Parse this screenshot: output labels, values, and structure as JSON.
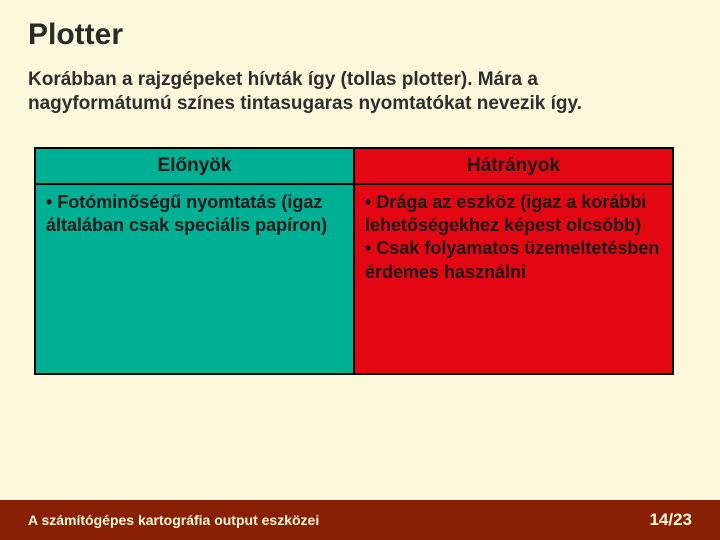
{
  "slide": {
    "title": "Plotter",
    "description": "Korábban a rajzgépeket hívták így (tollas plotter). Mára a nagyformátumú színes tintasugaras nyomtatókat nevezik így.",
    "table": {
      "headers": {
        "pros": "Előnyök",
        "cons": "Hátrányok"
      },
      "pros_items": [
        "Fotóminőségű nyomtatás (igaz általában csak speciális papíron)"
      ],
      "cons_items": [
        "Drága az eszköz (igaz a korábbi lehetőségekhez képest olcsóbb)",
        "Csak folyamatos üzemeltetésben érdemes használni"
      ],
      "colors": {
        "pros_bg": "#00b095",
        "cons_bg": "#e30613",
        "border": "#000000"
      }
    },
    "footer": {
      "left": "A számítógépes kartográfia output eszközei",
      "page": "14/23"
    },
    "colors": {
      "slide_bg": "#fbf9db",
      "footer_bg": "#8a2003",
      "footer_text": "#fbf9db",
      "title_text": "#2a2a2a",
      "body_text": "#1a1a1a"
    }
  }
}
